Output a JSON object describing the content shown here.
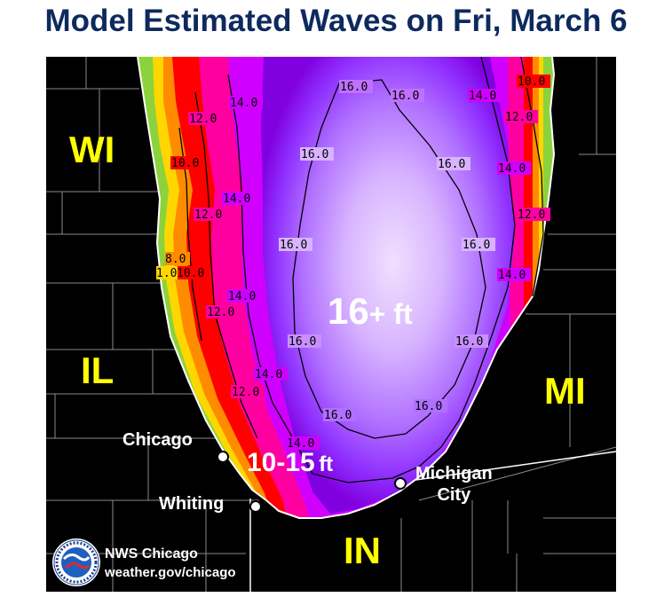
{
  "title": "Model Estimated Waves on Fri, March 6",
  "states": {
    "wi": "WI",
    "il": "IL",
    "mi": "MI",
    "in": "IN"
  },
  "cities": {
    "chicago": "Chicago",
    "whiting": "Whiting",
    "michigan_city_line1": "Michigan",
    "michigan_city_line2": "City"
  },
  "wave_labels": {
    "center_value": "16",
    "center_suffix": "+ ft",
    "nearshore_value": "10-15",
    "nearshore_unit": "ft"
  },
  "contour_labels": [
    "16.0",
    "14.0",
    "12.0",
    "10.0",
    "8.0",
    "1.0"
  ],
  "footer": {
    "office": "NWS Chicago",
    "url": "weather.gov/chicago",
    "seal_text": "NATIONAL WEATHER SERVICE"
  },
  "colors": {
    "title": "#0d2a5e",
    "state_label": "#ffff00",
    "background": "#000000",
    "wave_scale": [
      "#8cd23c",
      "#ffd700",
      "#ff8c00",
      "#ff0000",
      "#ff00a0",
      "#d000ff",
      "#9a30ff",
      "#c58cff",
      "#e8d0ff"
    ]
  }
}
